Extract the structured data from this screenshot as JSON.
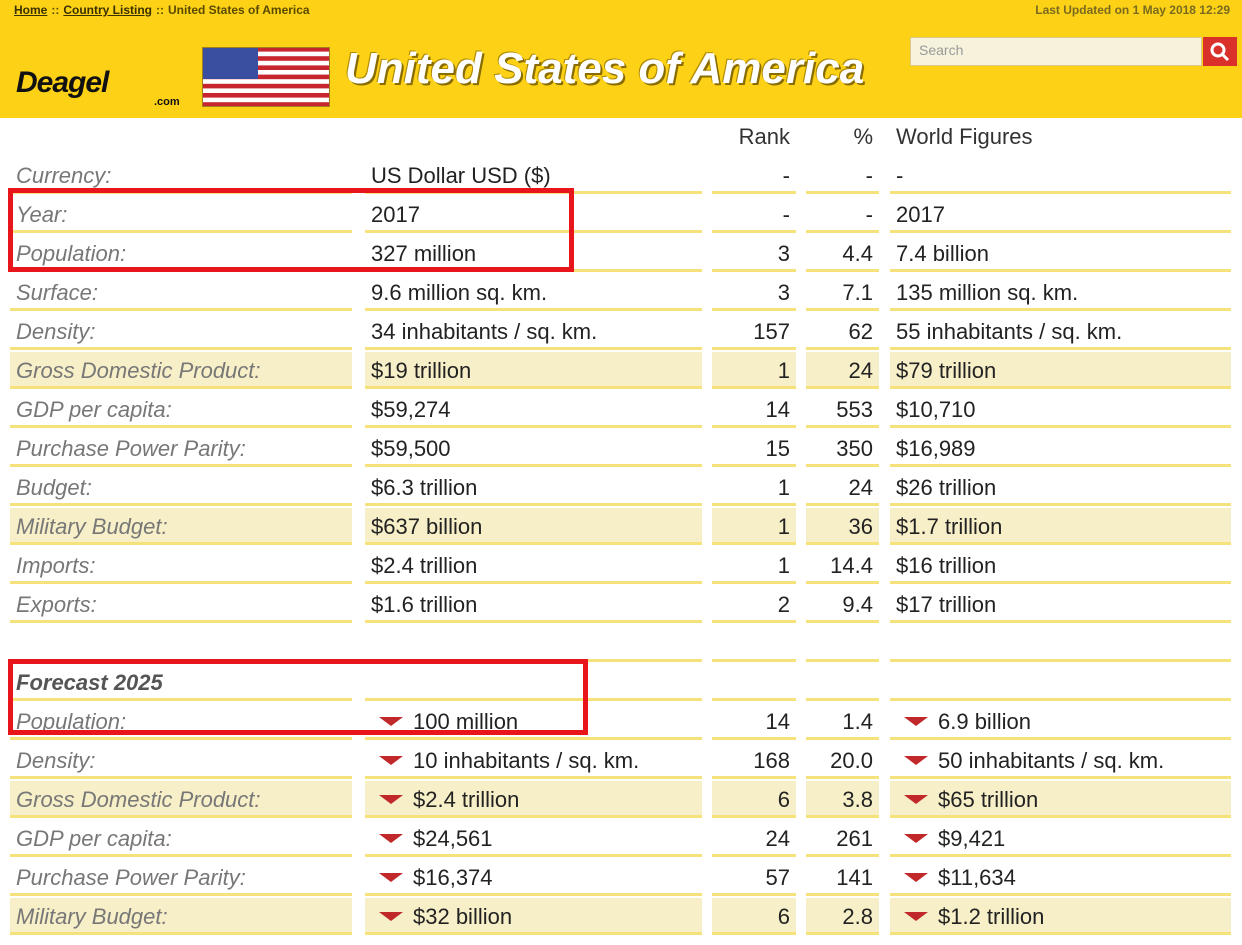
{
  "header": {
    "breadcrumb": [
      "Home",
      "Country Listing",
      "United States of America"
    ],
    "separator": "::",
    "last_updated": "Last Updated on 1 May 2018 12:29",
    "search_placeholder": "Search",
    "logo": "Deagel",
    "logo_suffix": ".com",
    "title": "United States of America"
  },
  "table": {
    "columns": [
      "Rank",
      "%",
      "World Figures"
    ],
    "rows": [
      {
        "label": "Currency:",
        "value": "US Dollar USD ($)",
        "rank": "-",
        "percent": "-",
        "world": "-",
        "highlight": false
      },
      {
        "label": "Year:",
        "value": "2017",
        "rank": "-",
        "percent": "-",
        "world": "2017",
        "highlight": false
      },
      {
        "label": "Population:",
        "value": "327 million",
        "rank": "3",
        "percent": "4.4",
        "world": "7.4 billion",
        "highlight": false
      },
      {
        "label": "Surface:",
        "value": "9.6 million sq. km.",
        "rank": "3",
        "percent": "7.1",
        "world": "135 million sq. km.",
        "highlight": false
      },
      {
        "label": "Density:",
        "value": "34 inhabitants / sq. km.",
        "rank": "157",
        "percent": "62",
        "world": "55 inhabitants / sq. km.",
        "highlight": false
      },
      {
        "label": "Gross Domestic Product:",
        "value": "$19 trillion",
        "rank": "1",
        "percent": "24",
        "world": "$79 trillion",
        "highlight": true
      },
      {
        "label": "GDP per capita:",
        "value": "$59,274",
        "rank": "14",
        "percent": "553",
        "world": "$10,710",
        "highlight": false
      },
      {
        "label": "Purchase Power Parity:",
        "value": "$59,500",
        "rank": "15",
        "percent": "350",
        "world": "$16,989",
        "highlight": false
      },
      {
        "label": "Budget:",
        "value": "$6.3 trillion",
        "rank": "1",
        "percent": "24",
        "world": "$26 trillion",
        "highlight": false
      },
      {
        "label": "Military Budget:",
        "value": "$637 billion",
        "rank": "1",
        "percent": "36",
        "world": "$1.7 trillion",
        "highlight": true
      },
      {
        "label": "Imports:",
        "value": "$2.4 trillion",
        "rank": "1",
        "percent": "14.4",
        "world": "$16 trillion",
        "highlight": false
      },
      {
        "label": "Exports:",
        "value": "$1.6 trillion",
        "rank": "2",
        "percent": "9.4",
        "world": "$17 trillion",
        "highlight": false
      }
    ],
    "forecast": {
      "title": "Forecast 2025",
      "trend": "down",
      "rows": [
        {
          "label": "Population:",
          "value": "100 million",
          "rank": "14",
          "percent": "1.4",
          "world": "6.9 billion",
          "highlight": false
        },
        {
          "label": "Density:",
          "value": "10 inhabitants / sq. km.",
          "rank": "168",
          "percent": "20.0",
          "world": "50 inhabitants / sq. km.",
          "highlight": false
        },
        {
          "label": "Gross Domestic Product:",
          "value": "$2.4 trillion",
          "rank": "6",
          "percent": "3.8",
          "world": "$65 trillion",
          "highlight": true
        },
        {
          "label": "GDP per capita:",
          "value": "$24,561",
          "rank": "24",
          "percent": "261",
          "world": "$9,421",
          "highlight": false
        },
        {
          "label": "Purchase Power Parity:",
          "value": "$16,374",
          "rank": "57",
          "percent": "141",
          "world": "$11,634",
          "highlight": false
        },
        {
          "label": "Military Budget:",
          "value": "$32 billion",
          "rank": "6",
          "percent": "2.8",
          "world": "$1.2 trillion",
          "highlight": true
        }
      ]
    }
  }
}
